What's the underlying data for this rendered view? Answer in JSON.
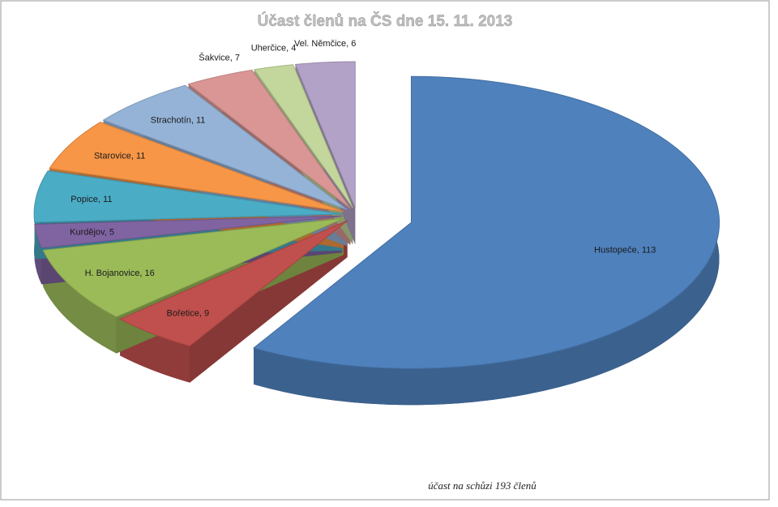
{
  "chart_data": {
    "type": "pie3d",
    "title": "Účast členů na ČS dne 15. 11. 2013",
    "categories": [
      "Hustopeče",
      "Bořetice",
      "H. Bojanovice",
      "Kurdějov",
      "Popice",
      "Starovice",
      "Strachotín",
      "Šakvice",
      "Uherčice",
      "Vel. Němčice"
    ],
    "values": [
      113,
      9,
      16,
      5,
      11,
      11,
      11,
      7,
      4,
      6
    ],
    "value_labels": [
      "Hustopeče, 113",
      "Bořetice, 9",
      "H. Bojanovice, 16",
      "Kurdějov, 5",
      "Popice, 11",
      "Starovice, 11",
      "Strachotín, 11",
      "Šakvice, 7",
      "Uherčice, 4",
      "Vel. Němčice, 6"
    ],
    "colors": [
      "#4f81bd",
      "#c0504d",
      "#9bbb59",
      "#8064a2",
      "#4bacc6",
      "#f79646",
      "#95b3d7",
      "#d99694",
      "#c3d69b",
      "#b3a2c7"
    ],
    "annotation": "účast na schůzi 193 členů"
  }
}
